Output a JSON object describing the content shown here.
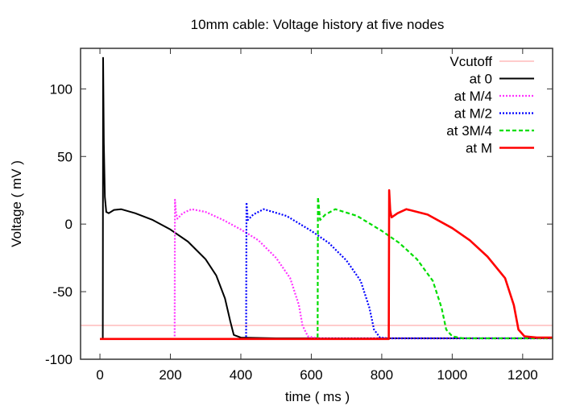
{
  "chart_data": {
    "type": "line",
    "title": "10mm cable: Voltage history at five nodes",
    "xlabel": "time  ( ms )",
    "ylabel": "Voltage  ( mV )",
    "xlim": [
      -55,
      1285
    ],
    "ylim": [
      -100,
      130
    ],
    "xticks": [
      0,
      200,
      400,
      600,
      800,
      1000,
      1200
    ],
    "yticks": [
      -100,
      -50,
      0,
      50,
      100
    ],
    "grid": false,
    "legend_position": "top-right",
    "series": [
      {
        "name": "Vcutoff",
        "color": "#ff9999",
        "style": "solid-thin",
        "points": [
          [
            -55,
            -75
          ],
          [
            1285,
            -75
          ]
        ]
      },
      {
        "name": "at 0",
        "color": "#000000",
        "style": "solid",
        "points": [
          [
            0,
            -85
          ],
          [
            8,
            -85
          ],
          [
            9,
            123
          ],
          [
            11,
            60
          ],
          [
            14,
            20
          ],
          [
            18,
            9
          ],
          [
            25,
            8
          ],
          [
            40,
            10.5
          ],
          [
            60,
            11
          ],
          [
            100,
            8
          ],
          [
            150,
            3
          ],
          [
            200,
            -4
          ],
          [
            250,
            -13
          ],
          [
            300,
            -26
          ],
          [
            330,
            -38
          ],
          [
            355,
            -55
          ],
          [
            370,
            -72
          ],
          [
            380,
            -82
          ],
          [
            400,
            -84
          ],
          [
            500,
            -84.5
          ],
          [
            1285,
            -84.5
          ]
        ]
      },
      {
        "name": "at M/4",
        "color": "#ff33ff",
        "style": "dotted",
        "points": [
          [
            0,
            -85
          ],
          [
            212,
            -85
          ],
          [
            213,
            18
          ],
          [
            216,
            8
          ],
          [
            220,
            4
          ],
          [
            235,
            8
          ],
          [
            260,
            11
          ],
          [
            300,
            9
          ],
          [
            350,
            3
          ],
          [
            400,
            -4
          ],
          [
            450,
            -12
          ],
          [
            500,
            -25
          ],
          [
            540,
            -40
          ],
          [
            565,
            -60
          ],
          [
            575,
            -75
          ],
          [
            590,
            -83
          ],
          [
            620,
            -84.5
          ],
          [
            1285,
            -84.5
          ]
        ]
      },
      {
        "name": "at M/2",
        "color": "#0000ff",
        "style": "dotted",
        "points": [
          [
            0,
            -85
          ],
          [
            415,
            -85
          ],
          [
            416,
            16
          ],
          [
            420,
            3
          ],
          [
            435,
            7
          ],
          [
            465,
            11
          ],
          [
            530,
            6
          ],
          [
            600,
            -5
          ],
          [
            650,
            -14
          ],
          [
            700,
            -27
          ],
          [
            740,
            -42
          ],
          [
            765,
            -62
          ],
          [
            778,
            -78
          ],
          [
            795,
            -84
          ],
          [
            820,
            -84.5
          ],
          [
            1285,
            -84.5
          ]
        ]
      },
      {
        "name": "at 3M/4",
        "color": "#00dd00",
        "style": "dashed",
        "points": [
          [
            0,
            -85
          ],
          [
            618,
            -85
          ],
          [
            619,
            20
          ],
          [
            625,
            3
          ],
          [
            640,
            7
          ],
          [
            668,
            11
          ],
          [
            730,
            6
          ],
          [
            800,
            -5
          ],
          [
            850,
            -14
          ],
          [
            900,
            -26
          ],
          [
            945,
            -42
          ],
          [
            970,
            -62
          ],
          [
            983,
            -78
          ],
          [
            1000,
            -83
          ],
          [
            1030,
            -84.5
          ],
          [
            1285,
            -84.5
          ]
        ]
      },
      {
        "name": "at M",
        "color": "#ff0000",
        "style": "solid-thick",
        "points": [
          [
            0,
            -85
          ],
          [
            820,
            -85
          ],
          [
            821,
            25
          ],
          [
            824,
            10
          ],
          [
            828,
            5
          ],
          [
            845,
            8
          ],
          [
            870,
            11
          ],
          [
            930,
            7
          ],
          [
            1000,
            -3
          ],
          [
            1050,
            -12
          ],
          [
            1100,
            -24
          ],
          [
            1150,
            -40
          ],
          [
            1175,
            -60
          ],
          [
            1188,
            -78
          ],
          [
            1205,
            -83
          ],
          [
            1240,
            -84
          ],
          [
            1285,
            -84
          ]
        ]
      }
    ]
  }
}
